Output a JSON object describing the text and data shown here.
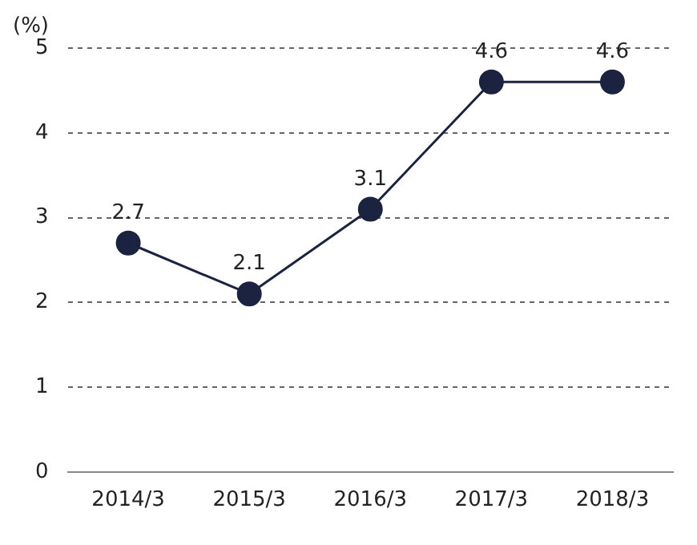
{
  "chart_data": {
    "type": "line",
    "ylabel": "(%)",
    "categories": [
      "2014/3",
      "2015/3",
      "2016/3",
      "2017/3",
      "2018/3"
    ],
    "series": [
      {
        "color": "#1c2340",
        "values": [
          2.7,
          2.1,
          3.1,
          4.6,
          4.6
        ]
      }
    ],
    "ylim": [
      0,
      5
    ],
    "yticks": [
      0,
      1,
      2,
      3,
      4,
      5
    ],
    "grid": "y",
    "legend": false,
    "marker": "circle",
    "line_style": "solid",
    "data_labels": true
  }
}
